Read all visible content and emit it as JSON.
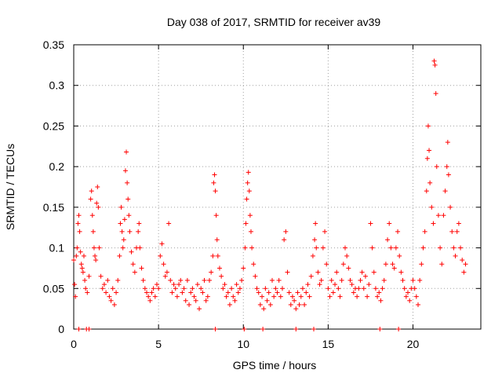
{
  "chart_data": {
    "type": "scatter",
    "title": "Day 038 of 2017, SRMTID for receiver av39",
    "xlabel": "GPS time / hours",
    "ylabel": "SRMTID / TECUs",
    "xlim": [
      0,
      24
    ],
    "ylim": [
      0,
      0.35
    ],
    "xticks": [
      0,
      5,
      10,
      15,
      20
    ],
    "xtick_labels": [
      "0",
      "5",
      "10",
      "15",
      "20"
    ],
    "yticks": [
      0,
      0.05,
      0.1,
      0.15,
      0.2,
      0.25,
      0.3,
      0.35
    ],
    "ytick_labels": [
      "0",
      "0.05",
      "0.1",
      "0.15",
      "0.2",
      "0.25",
      "0.3",
      "0.35"
    ],
    "grid": true,
    "marker": "+",
    "series": [
      {
        "name": "SRMTID",
        "color": "#ff0000",
        "points": [
          [
            0.0,
            0.085
          ],
          [
            0.05,
            0.055
          ],
          [
            0.1,
            0.04
          ],
          [
            0.15,
            0.09
          ],
          [
            0.2,
            0.1
          ],
          [
            0.25,
            0.13
          ],
          [
            0.3,
            0.14
          ],
          [
            0.35,
            0.12
          ],
          [
            0.4,
            0.095
          ],
          [
            0.45,
            0.08
          ],
          [
            0.5,
            0.075
          ],
          [
            0.55,
            0.07
          ],
          [
            0.6,
            0.09
          ],
          [
            0.65,
            0.06
          ],
          [
            0.7,
            0.05
          ],
          [
            0.8,
            0.045
          ],
          [
            0.9,
            0.065
          ],
          [
            1.0,
            0.16
          ],
          [
            1.05,
            0.17
          ],
          [
            1.1,
            0.14
          ],
          [
            1.15,
            0.12
          ],
          [
            1.2,
            0.1
          ],
          [
            1.25,
            0.09
          ],
          [
            1.3,
            0.085
          ],
          [
            1.35,
            0.155
          ],
          [
            1.4,
            0.175
          ],
          [
            1.45,
            0.15
          ],
          [
            1.5,
            0.1
          ],
          [
            1.6,
            0.065
          ],
          [
            1.7,
            0.05
          ],
          [
            1.8,
            0.055
          ],
          [
            1.9,
            0.045
          ],
          [
            2.0,
            0.06
          ],
          [
            2.1,
            0.04
          ],
          [
            2.2,
            0.035
          ],
          [
            2.3,
            0.05
          ],
          [
            2.4,
            0.03
          ],
          [
            2.5,
            0.045
          ],
          [
            2.6,
            0.06
          ],
          [
            2.7,
            0.09
          ],
          [
            2.75,
            0.13
          ],
          [
            2.8,
            0.15
          ],
          [
            2.85,
            0.12
          ],
          [
            2.9,
            0.1
          ],
          [
            2.95,
            0.11
          ],
          [
            3.0,
            0.135
          ],
          [
            3.05,
            0.195
          ],
          [
            3.1,
            0.218
          ],
          [
            3.15,
            0.18
          ],
          [
            3.2,
            0.16
          ],
          [
            3.25,
            0.14
          ],
          [
            3.3,
            0.12
          ],
          [
            3.4,
            0.095
          ],
          [
            3.5,
            0.08
          ],
          [
            3.6,
            0.07
          ],
          [
            3.7,
            0.1
          ],
          [
            3.8,
            0.12
          ],
          [
            3.85,
            0.13
          ],
          [
            3.9,
            0.1
          ],
          [
            4.0,
            0.075
          ],
          [
            4.1,
            0.06
          ],
          [
            4.2,
            0.05
          ],
          [
            4.3,
            0.045
          ],
          [
            4.4,
            0.04
          ],
          [
            4.5,
            0.035
          ],
          [
            4.6,
            0.045
          ],
          [
            4.7,
            0.05
          ],
          [
            4.8,
            0.04
          ],
          [
            4.9,
            0.055
          ],
          [
            5.0,
            0.05
          ],
          [
            5.1,
            0.09
          ],
          [
            5.2,
            0.105
          ],
          [
            5.3,
            0.08
          ],
          [
            5.4,
            0.065
          ],
          [
            5.5,
            0.07
          ],
          [
            5.6,
            0.13
          ],
          [
            5.7,
            0.06
          ],
          [
            5.8,
            0.045
          ],
          [
            5.9,
            0.055
          ],
          [
            6.0,
            0.05
          ],
          [
            6.1,
            0.04
          ],
          [
            6.2,
            0.055
          ],
          [
            6.3,
            0.06
          ],
          [
            6.4,
            0.045
          ],
          [
            6.5,
            0.05
          ],
          [
            6.6,
            0.035
          ],
          [
            6.7,
            0.06
          ],
          [
            6.8,
            0.03
          ],
          [
            6.9,
            0.045
          ],
          [
            7.0,
            0.05
          ],
          [
            7.1,
            0.04
          ],
          [
            7.2,
            0.035
          ],
          [
            7.3,
            0.055
          ],
          [
            7.4,
            0.025
          ],
          [
            7.5,
            0.05
          ],
          [
            7.6,
            0.045
          ],
          [
            7.7,
            0.06
          ],
          [
            7.8,
            0.035
          ],
          [
            7.9,
            0.04
          ],
          [
            8.0,
            0.06
          ],
          [
            8.1,
            0.07
          ],
          [
            8.2,
            0.09
          ],
          [
            8.25,
            0.18
          ],
          [
            8.3,
            0.19
          ],
          [
            8.35,
            0.17
          ],
          [
            8.4,
            0.14
          ],
          [
            8.45,
            0.11
          ],
          [
            8.5,
            0.09
          ],
          [
            8.6,
            0.075
          ],
          [
            8.7,
            0.065
          ],
          [
            8.8,
            0.05
          ],
          [
            8.9,
            0.055
          ],
          [
            9.0,
            0.04
          ],
          [
            9.1,
            0.045
          ],
          [
            9.2,
            0.03
          ],
          [
            9.3,
            0.05
          ],
          [
            9.4,
            0.04
          ],
          [
            9.5,
            0.035
          ],
          [
            9.6,
            0.055
          ],
          [
            9.7,
            0.045
          ],
          [
            9.8,
            0.05
          ],
          [
            9.9,
            0.06
          ],
          [
            10.0,
            0.075
          ],
          [
            10.1,
            0.1
          ],
          [
            10.15,
            0.13
          ],
          [
            10.2,
            0.16
          ],
          [
            10.25,
            0.18
          ],
          [
            10.3,
            0.193
          ],
          [
            10.35,
            0.17
          ],
          [
            10.4,
            0.14
          ],
          [
            10.45,
            0.12
          ],
          [
            10.5,
            0.1
          ],
          [
            10.6,
            0.08
          ],
          [
            10.7,
            0.065
          ],
          [
            10.8,
            0.05
          ],
          [
            10.9,
            0.045
          ],
          [
            11.0,
            0.03
          ],
          [
            11.1,
            0.04
          ],
          [
            11.2,
            0.025
          ],
          [
            11.3,
            0.05
          ],
          [
            11.4,
            0.035
          ],
          [
            11.5,
            0.045
          ],
          [
            11.6,
            0.03
          ],
          [
            11.7,
            0.06
          ],
          [
            11.8,
            0.04
          ],
          [
            11.9,
            0.05
          ],
          [
            12.0,
            0.045
          ],
          [
            12.1,
            0.06
          ],
          [
            12.2,
            0.04
          ],
          [
            12.3,
            0.05
          ],
          [
            12.4,
            0.11
          ],
          [
            12.5,
            0.12
          ],
          [
            12.6,
            0.07
          ],
          [
            12.7,
            0.045
          ],
          [
            12.8,
            0.03
          ],
          [
            12.9,
            0.04
          ],
          [
            13.0,
            0.035
          ],
          [
            13.1,
            0.025
          ],
          [
            13.2,
            0.045
          ],
          [
            13.3,
            0.03
          ],
          [
            13.4,
            0.04
          ],
          [
            13.5,
            0.05
          ],
          [
            13.6,
            0.03
          ],
          [
            13.7,
            0.045
          ],
          [
            13.8,
            0.055
          ],
          [
            13.9,
            0.04
          ],
          [
            14.0,
            0.065
          ],
          [
            14.1,
            0.09
          ],
          [
            14.2,
            0.11
          ],
          [
            14.25,
            0.13
          ],
          [
            14.3,
            0.1
          ],
          [
            14.4,
            0.07
          ],
          [
            14.5,
            0.055
          ],
          [
            14.6,
            0.06
          ],
          [
            14.7,
            0.1
          ],
          [
            14.8,
            0.12
          ],
          [
            14.9,
            0.08
          ],
          [
            15.0,
            0.05
          ],
          [
            15.1,
            0.04
          ],
          [
            15.2,
            0.06
          ],
          [
            15.3,
            0.045
          ],
          [
            15.4,
            0.055
          ],
          [
            15.5,
            0.07
          ],
          [
            15.6,
            0.05
          ],
          [
            15.7,
            0.04
          ],
          [
            15.8,
            0.06
          ],
          [
            15.9,
            0.08
          ],
          [
            16.0,
            0.1
          ],
          [
            16.1,
            0.09
          ],
          [
            16.2,
            0.075
          ],
          [
            16.3,
            0.06
          ],
          [
            16.4,
            0.055
          ],
          [
            16.5,
            0.045
          ],
          [
            16.6,
            0.05
          ],
          [
            16.7,
            0.04
          ],
          [
            16.8,
            0.05
          ],
          [
            16.9,
            0.06
          ],
          [
            17.0,
            0.07
          ],
          [
            17.1,
            0.05
          ],
          [
            17.2,
            0.065
          ],
          [
            17.3,
            0.04
          ],
          [
            17.4,
            0.055
          ],
          [
            17.5,
            0.13
          ],
          [
            17.6,
            0.1
          ],
          [
            17.7,
            0.07
          ],
          [
            17.8,
            0.05
          ],
          [
            17.9,
            0.04
          ],
          [
            18.0,
            0.045
          ],
          [
            18.1,
            0.035
          ],
          [
            18.2,
            0.05
          ],
          [
            18.3,
            0.06
          ],
          [
            18.4,
            0.08
          ],
          [
            18.5,
            0.11
          ],
          [
            18.6,
            0.13
          ],
          [
            18.7,
            0.1
          ],
          [
            18.8,
            0.08
          ],
          [
            18.9,
            0.075
          ],
          [
            19.0,
            0.1
          ],
          [
            19.1,
            0.12
          ],
          [
            19.2,
            0.09
          ],
          [
            19.3,
            0.07
          ],
          [
            19.4,
            0.06
          ],
          [
            19.5,
            0.05
          ],
          [
            19.6,
            0.04
          ],
          [
            19.7,
            0.045
          ],
          [
            19.8,
            0.035
          ],
          [
            19.9,
            0.05
          ],
          [
            20.0,
            0.06
          ],
          [
            20.1,
            0.05
          ],
          [
            20.2,
            0.04
          ],
          [
            20.3,
            0.03
          ],
          [
            20.4,
            0.06
          ],
          [
            20.5,
            0.08
          ],
          [
            20.6,
            0.1
          ],
          [
            20.7,
            0.12
          ],
          [
            20.8,
            0.17
          ],
          [
            20.85,
            0.21
          ],
          [
            20.9,
            0.25
          ],
          [
            20.95,
            0.22
          ],
          [
            21.0,
            0.18
          ],
          [
            21.1,
            0.15
          ],
          [
            21.2,
            0.13
          ],
          [
            21.25,
            0.33
          ],
          [
            21.3,
            0.325
          ],
          [
            21.35,
            0.29
          ],
          [
            21.4,
            0.2
          ],
          [
            21.5,
            0.14
          ],
          [
            21.6,
            0.1
          ],
          [
            21.7,
            0.08
          ],
          [
            21.8,
            0.14
          ],
          [
            21.9,
            0.17
          ],
          [
            22.0,
            0.2
          ],
          [
            22.05,
            0.23
          ],
          [
            22.1,
            0.19
          ],
          [
            22.2,
            0.15
          ],
          [
            22.3,
            0.12
          ],
          [
            22.4,
            0.1
          ],
          [
            22.5,
            0.09
          ],
          [
            22.6,
            0.12
          ],
          [
            22.7,
            0.13
          ],
          [
            22.8,
            0.1
          ],
          [
            22.9,
            0.085
          ],
          [
            23.0,
            0.07
          ],
          [
            23.1,
            0.08
          ]
        ]
      }
    ],
    "zero_points": [
      0.3,
      0.75,
      0.9,
      8.35,
      10.05,
      11.15,
      13.1,
      14.15,
      18.05,
      19.15
    ]
  }
}
